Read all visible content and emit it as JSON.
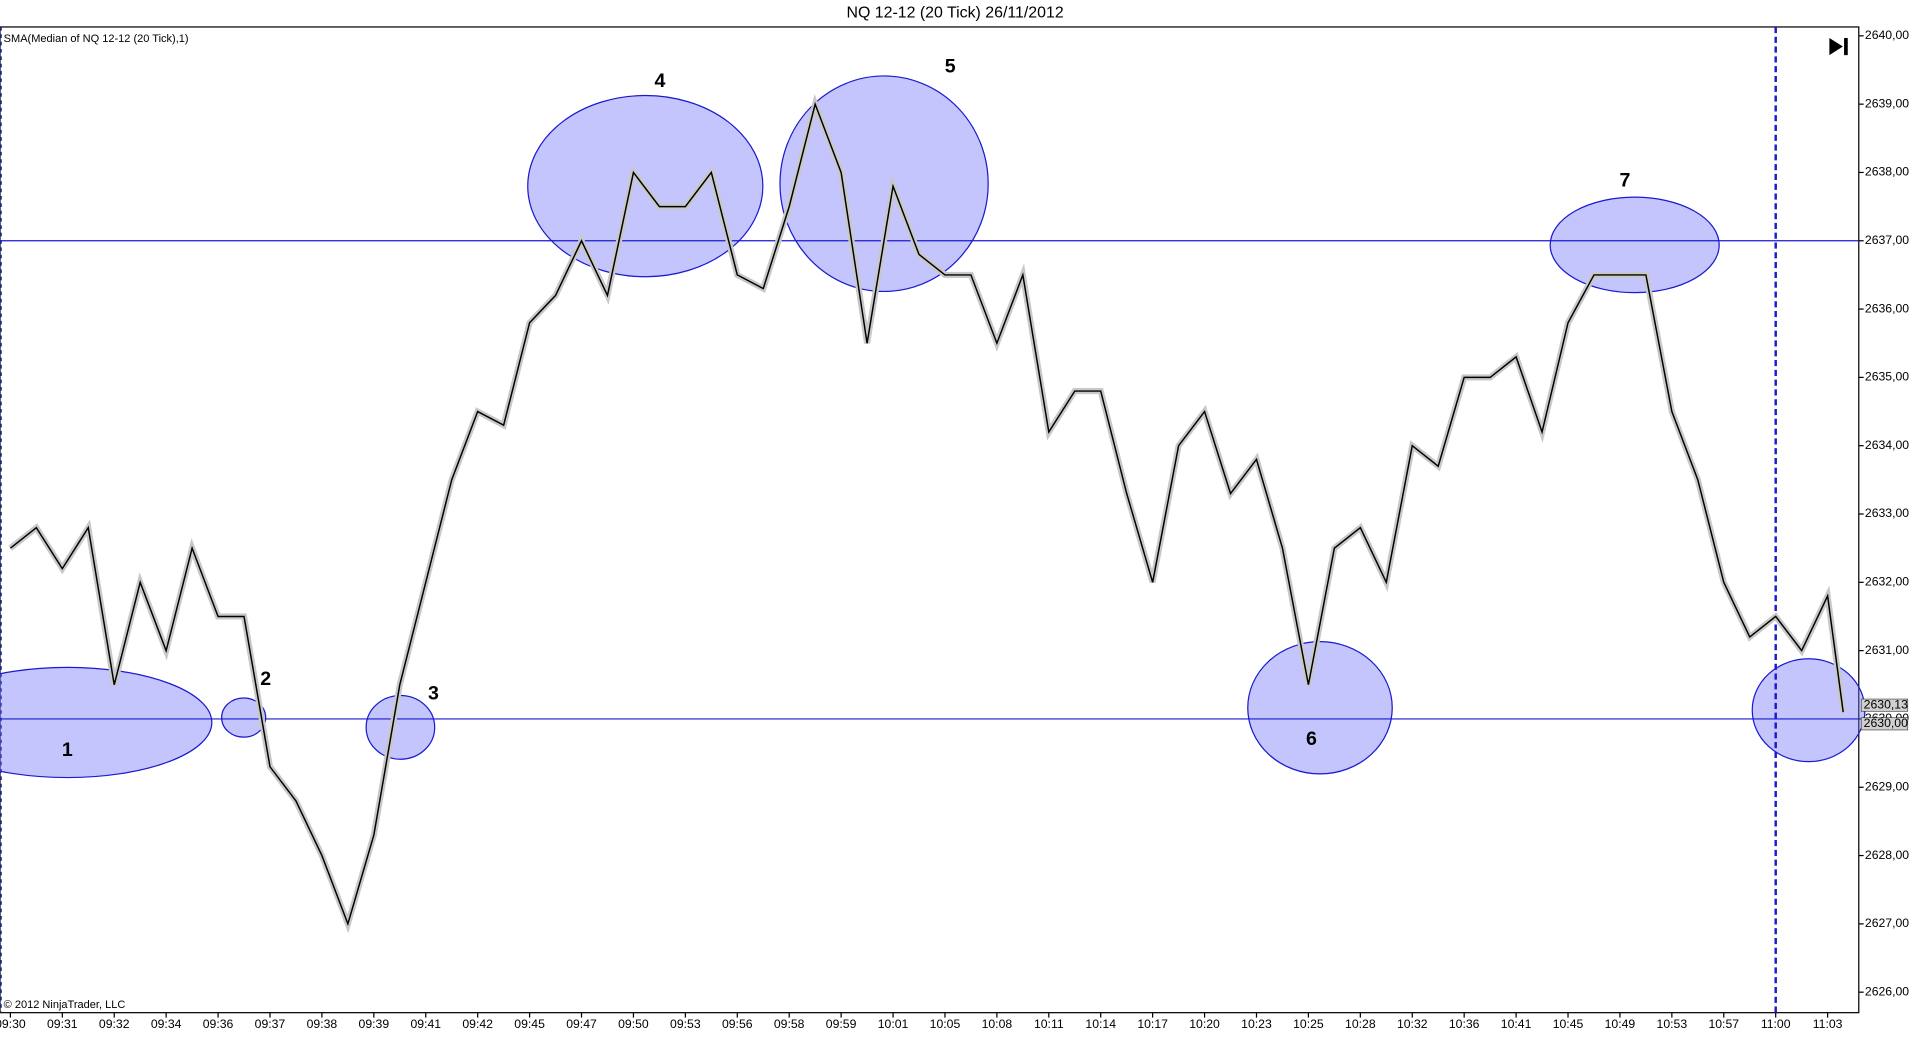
{
  "chart_data": {
    "type": "line",
    "title": "NQ 12-12 (20 Tick)  26/11/2012",
    "indicator_label": "SMA(Median of NQ 12-12 (20 Tick),1)",
    "copyright": "© 2012 NinjaTrader, LLC",
    "x": [
      0,
      5,
      10,
      15,
      20,
      25,
      30,
      35,
      40,
      45,
      50,
      55,
      60,
      65,
      70,
      75,
      80,
      85,
      90,
      95,
      100,
      105,
      110,
      115,
      120,
      125,
      130,
      135,
      140,
      145,
      150,
      155,
      160,
      165,
      170,
      175,
      180,
      185,
      190,
      195,
      200,
      205,
      210,
      215,
      220,
      225,
      230,
      235,
      240,
      245,
      250,
      255,
      260,
      265,
      270,
      275,
      280,
      285,
      290,
      295,
      300,
      305,
      310,
      315,
      320,
      325,
      330,
      335,
      340,
      345,
      350,
      353
    ],
    "series": [
      {
        "name": "SMA(Median of NQ 12-12 (20 Tick),1)",
        "color": "#000000",
        "values": [
          2632.5,
          2632.8,
          2632.2,
          2632.8,
          2630.5,
          2632,
          2631,
          2632.5,
          2631.5,
          2631.5,
          2629.3,
          2628.8,
          2628,
          2627,
          2628.3,
          2630.5,
          2632,
          2633.5,
          2634.5,
          2634.3,
          2635.8,
          2636.2,
          2637,
          2636.2,
          2638,
          2637.5,
          2637.5,
          2638,
          2636.5,
          2636.3,
          2637.5,
          2639,
          2638,
          2635.5,
          2637.8,
          2636.8,
          2636.5,
          2636.5,
          2635.5,
          2636.5,
          2634.2,
          2634.8,
          2634.8,
          2633.3,
          2632,
          2634,
          2634.5,
          2633.3,
          2633.8,
          2632.5,
          2630.5,
          2632.5,
          2632.8,
          2632,
          2634,
          2633.7,
          2635,
          2635,
          2635.3,
          2634.2,
          2635.8,
          2636.5,
          2636.5,
          2636.5,
          2634.5,
          2633.5,
          2632,
          2631.2,
          2631.5,
          2631,
          2631.8,
          2630.1
        ]
      }
    ],
    "xlim": [
      -2,
      356
    ],
    "xticks": [
      {
        "value": 0,
        "label": "09:30"
      },
      {
        "value": 10,
        "label": "09:31"
      },
      {
        "value": 20,
        "label": "09:32"
      },
      {
        "value": 30,
        "label": "09:34"
      },
      {
        "value": 40,
        "label": "09:36"
      },
      {
        "value": 50,
        "label": "09:37"
      },
      {
        "value": 60,
        "label": "09:38"
      },
      {
        "value": 70,
        "label": "09:39"
      },
      {
        "value": 80,
        "label": "09:41"
      },
      {
        "value": 90,
        "label": "09:42"
      },
      {
        "value": 100,
        "label": "09:45"
      },
      {
        "value": 110,
        "label": "09:47"
      },
      {
        "value": 120,
        "label": "09:50"
      },
      {
        "value": 130,
        "label": "09:53"
      },
      {
        "value": 140,
        "label": "09:56"
      },
      {
        "value": 150,
        "label": "09:58"
      },
      {
        "value": 160,
        "label": "09:59"
      },
      {
        "value": 170,
        "label": "10:01"
      },
      {
        "value": 180,
        "label": "10:05"
      },
      {
        "value": 190,
        "label": "10:08"
      },
      {
        "value": 200,
        "label": "10:11"
      },
      {
        "value": 210,
        "label": "10:14"
      },
      {
        "value": 220,
        "label": "10:17"
      },
      {
        "value": 230,
        "label": "10:20"
      },
      {
        "value": 240,
        "label": "10:23"
      },
      {
        "value": 250,
        "label": "10:25"
      },
      {
        "value": 260,
        "label": "10:28"
      },
      {
        "value": 270,
        "label": "10:32"
      },
      {
        "value": 280,
        "label": "10:36"
      },
      {
        "value": 290,
        "label": "10:41"
      },
      {
        "value": 300,
        "label": "10:45"
      },
      {
        "value": 310,
        "label": "10:49"
      },
      {
        "value": 320,
        "label": "10:53"
      },
      {
        "value": 330,
        "label": "10:57"
      },
      {
        "value": 340,
        "label": "11:00"
      },
      {
        "value": 350,
        "label": "11:03"
      }
    ],
    "ylim": [
      2625.7,
      2640.13
    ],
    "yticks": [
      {
        "value": 2626,
        "label": "2626,00"
      },
      {
        "value": 2627,
        "label": "2627,00"
      },
      {
        "value": 2628,
        "label": "2628,00"
      },
      {
        "value": 2629,
        "label": "2629,00"
      },
      {
        "value": 2630,
        "label": "2630,00"
      },
      {
        "value": 2631,
        "label": "2631,00"
      },
      {
        "value": 2632,
        "label": "2632,00"
      },
      {
        "value": 2633,
        "label": "2633,00"
      },
      {
        "value": 2634,
        "label": "2634,00"
      },
      {
        "value": 2635,
        "label": "2635,00"
      },
      {
        "value": 2636,
        "label": "2636,00"
      },
      {
        "value": 2637,
        "label": "2637,00"
      },
      {
        "value": 2638,
        "label": "2638,00"
      },
      {
        "value": 2639,
        "label": "2639,00"
      },
      {
        "value": 2640,
        "label": "2640,00"
      }
    ],
    "hlines": [
      2637,
      2630
    ],
    "vline": 340,
    "price_markers": [
      {
        "value": 2630.13,
        "label": "2630,13"
      },
      {
        "value": 2630,
        "label": "2630,00"
      }
    ],
    "annotations": [
      "1",
      "2",
      "3",
      "4",
      "5",
      "6",
      "7"
    ]
  }
}
